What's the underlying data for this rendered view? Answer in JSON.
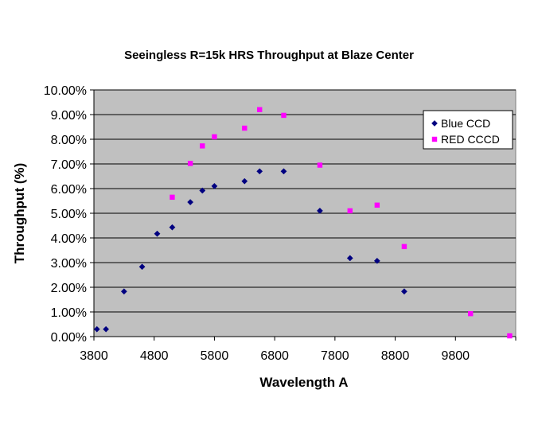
{
  "chart_data": {
    "type": "scatter",
    "title": "Seeingless R=15k HRS Throughput at Blaze Center",
    "xlabel": "Wavelength A",
    "ylabel": "Throughput (%)",
    "xlim": [
      3800,
      10800
    ],
    "ylim": [
      0,
      10
    ],
    "x_ticks": [
      3800,
      4800,
      5800,
      6800,
      7800,
      8800,
      9800
    ],
    "x_tick_labels": [
      "3800",
      "4800",
      "5800",
      "6800",
      "7800",
      "8800",
      "9800"
    ],
    "y_ticks": [
      0,
      1,
      2,
      3,
      4,
      5,
      6,
      7,
      8,
      9,
      10
    ],
    "y_tick_labels": [
      "0.00%",
      "1.00%",
      "2.00%",
      "3.00%",
      "4.00%",
      "5.00%",
      "6.00%",
      "7.00%",
      "8.00%",
      "9.00%",
      "10.00%"
    ],
    "grid": "horizontal major gridlines",
    "legend_position": "top-right",
    "series": [
      {
        "name": "Blue CCD",
        "color": "#000080",
        "marker": "diamond",
        "x": [
          3850,
          4000,
          4300,
          4600,
          4850,
          5100,
          5400,
          5600,
          5800,
          6300,
          6550,
          6950,
          7550,
          8050,
          8500,
          8950
        ],
        "y": [
          0.3,
          0.3,
          1.83,
          2.83,
          4.17,
          4.43,
          5.45,
          5.92,
          6.1,
          6.3,
          6.7,
          6.7,
          5.1,
          3.18,
          3.07,
          1.83
        ]
      },
      {
        "name": "RED CCCD",
        "color": "#FF00FF",
        "marker": "square",
        "x": [
          5100,
          5400,
          5600,
          5800,
          6300,
          6550,
          6950,
          7550,
          8050,
          8500,
          8950,
          10050,
          10700
        ],
        "y": [
          5.65,
          7.02,
          7.73,
          8.1,
          8.45,
          9.2,
          8.97,
          6.95,
          5.1,
          5.33,
          3.65,
          0.93,
          0.03
        ]
      }
    ]
  }
}
